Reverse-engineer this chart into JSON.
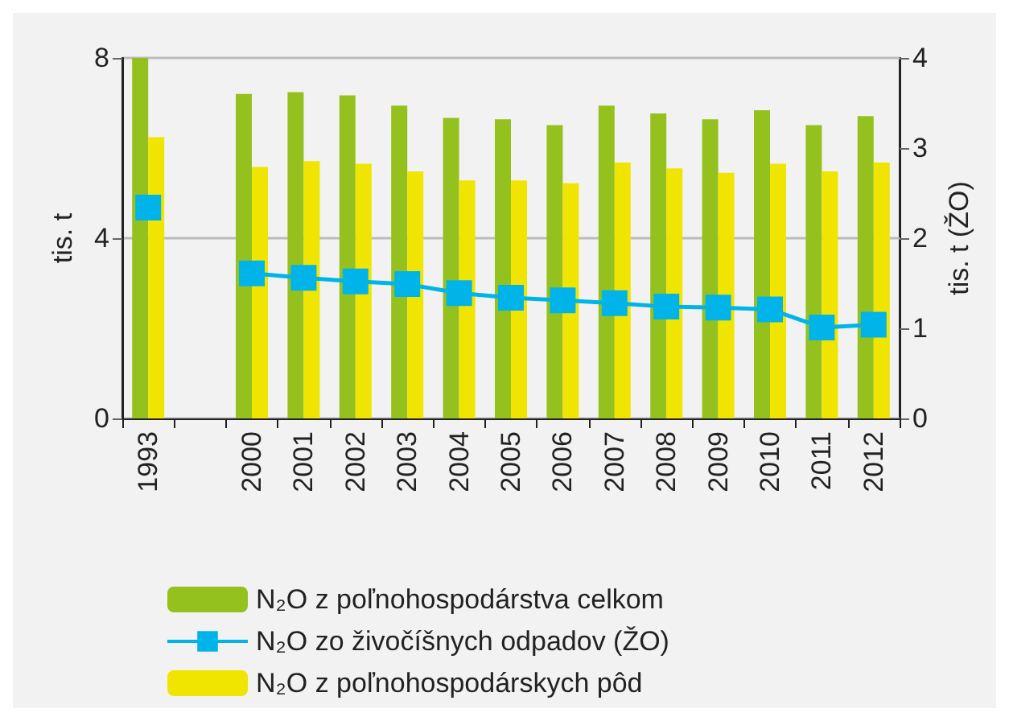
{
  "chart_data": {
    "type": "bar",
    "ylabel": "tis. t",
    "y2label": "tis. t (ŽO)",
    "categories": [
      "1993",
      null,
      "2000",
      "2001",
      "2002",
      "2003",
      "2004",
      "2005",
      "2006",
      "2007",
      "2008",
      "2009",
      "2010",
      "2011",
      "2012"
    ],
    "series": [
      {
        "name": "N₂O z poľnohospodárstva celkom",
        "color": "#95c11f",
        "values": [
          8.0,
          null,
          7.2,
          7.24,
          7.17,
          6.94,
          6.67,
          6.64,
          6.51,
          6.94,
          6.77,
          6.64,
          6.84,
          6.51,
          6.71
        ]
      },
      {
        "name": "N₂O zo živočíšnych odpadov (ŽO)",
        "type": "line",
        "axis": "y2",
        "marker": "square",
        "color": "#00b4ea",
        "values": [
          2.34,
          null,
          1.61,
          1.56,
          1.52,
          1.49,
          1.39,
          1.34,
          1.31,
          1.28,
          1.24,
          1.23,
          1.21,
          1.01,
          1.04
        ]
      },
      {
        "name": "N₂O z poľnohospodárskych pôd",
        "color": "#f0e500",
        "values": [
          6.24,
          null,
          5.58,
          5.71,
          5.65,
          5.48,
          5.28,
          5.28,
          5.22,
          5.68,
          5.55,
          5.45,
          5.65,
          5.48,
          5.68
        ]
      }
    ],
    "ylim": [
      0,
      8
    ],
    "yticks": [
      0,
      4,
      8
    ],
    "y2lim": [
      0,
      4
    ],
    "y2ticks": [
      0,
      1,
      2,
      3,
      4
    ],
    "grid": "y",
    "legend": "bottom"
  }
}
